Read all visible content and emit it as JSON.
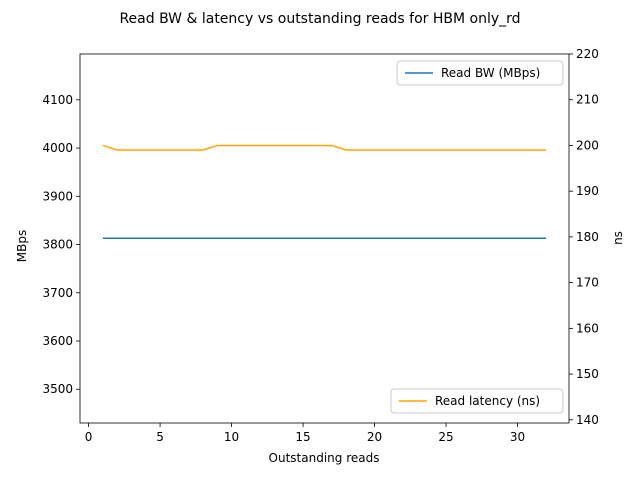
{
  "chart_data": {
    "type": "line",
    "title": "Read BW & latency vs outstanding reads for HBM only_rd",
    "xlabel": "Outstanding reads",
    "ylabel_left": "MBps",
    "ylabel_right": "ns",
    "xlim": [
      -0.6,
      33.6
    ],
    "xticks": [
      0,
      5,
      10,
      15,
      20,
      25,
      30
    ],
    "ylim_left": [
      3430,
      4195
    ],
    "yticks_left": [
      3500,
      3600,
      3700,
      3800,
      3900,
      4000,
      4100
    ],
    "ylim_right": [
      139.3,
      220
    ],
    "yticks_right": [
      140,
      150,
      160,
      170,
      180,
      190,
      200,
      210,
      220
    ],
    "grid": false,
    "series": [
      {
        "name": "Read BW (MBps)",
        "axis": "left",
        "color": "#1f77b4",
        "legend": "top-right",
        "x": [
          1,
          2,
          3,
          4,
          5,
          6,
          7,
          8,
          9,
          10,
          11,
          12,
          13,
          14,
          15,
          16,
          17,
          18,
          19,
          20,
          21,
          22,
          23,
          24,
          25,
          26,
          27,
          28,
          29,
          30,
          31,
          32
        ],
        "values": [
          3813,
          3813,
          3813,
          3813,
          3813,
          3813,
          3813,
          3813,
          3813,
          3813,
          3813,
          3813,
          3813,
          3813,
          3813,
          3813,
          3813,
          3813,
          3813,
          3813,
          3813,
          3813,
          3813,
          3813,
          3813,
          3813,
          3813,
          3813,
          3813,
          3813,
          3813,
          3813
        ]
      },
      {
        "name": "Read latency (ns)",
        "axis": "right",
        "color": "#ffa500",
        "legend": "bottom-right",
        "x": [
          1,
          2,
          3,
          4,
          5,
          6,
          7,
          8,
          9,
          10,
          11,
          12,
          13,
          14,
          15,
          16,
          17,
          18,
          19,
          20,
          21,
          22,
          23,
          24,
          25,
          26,
          27,
          28,
          29,
          30,
          31,
          32
        ],
        "values": [
          200,
          199,
          199,
          199,
          199,
          199,
          199,
          199,
          200,
          200,
          200,
          200,
          200,
          200,
          200,
          200,
          200,
          199,
          199,
          199,
          199,
          199,
          199,
          199,
          199,
          199,
          199,
          199,
          199,
          199,
          199,
          199
        ]
      }
    ]
  }
}
